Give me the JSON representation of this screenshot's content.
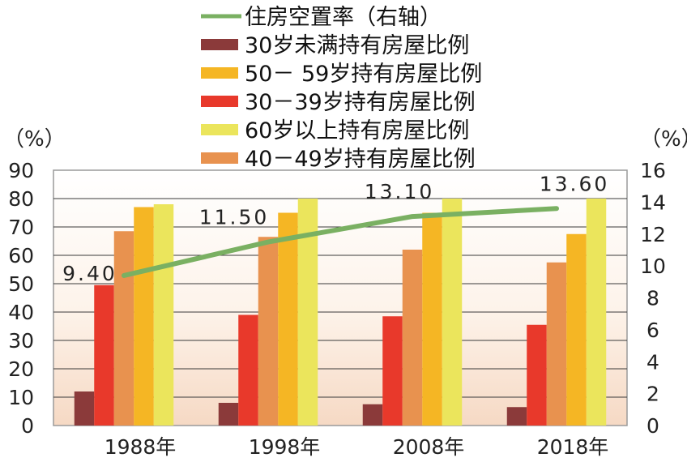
{
  "chart_data": {
    "type": "bar",
    "categories": [
      "1988年",
      "1998年",
      "2008年",
      "2018年"
    ],
    "left_axis": {
      "unit": "（%）",
      "ylim": [
        0,
        90
      ],
      "ticks": [
        0,
        10,
        20,
        30,
        40,
        50,
        60,
        70,
        80,
        90
      ]
    },
    "right_axis": {
      "unit": "（%）",
      "ylim": [
        0,
        16
      ],
      "ticks": [
        0,
        2,
        4,
        6,
        8,
        10,
        12,
        14,
        16
      ]
    },
    "series": [
      {
        "name": "30岁未满持有房屋比例",
        "color": "#8b3a3a",
        "values": [
          12,
          8,
          7.5,
          6.5
        ]
      },
      {
        "name": "30－39岁持有房屋比例",
        "color": "#e8392b",
        "values": [
          49.5,
          39,
          38.5,
          35.5
        ]
      },
      {
        "name": "40－49岁持有房屋比例",
        "color": "#e8924f",
        "values": [
          68.5,
          66.5,
          62,
          57.5
        ]
      },
      {
        "name": "50－ 59岁持有房屋比例",
        "color": "#f5b624",
        "values": [
          77,
          75,
          75,
          67.5
        ]
      },
      {
        "name": "60岁以上持有房屋比例",
        "color": "#ebe55c",
        "values": [
          78,
          80,
          80,
          80
        ]
      }
    ],
    "line_series": {
      "name": "住房空置率（右轴）",
      "axis": "right",
      "color": "#7ab062",
      "values": [
        9.4,
        11.5,
        13.1,
        13.6
      ],
      "labels": [
        "9.40",
        "11.50",
        "13.10",
        "13.60"
      ]
    },
    "legend_order": [
      "住房空置率（右轴）",
      "30岁未满持有房屋比例",
      "50－ 59岁持有房屋比例",
      "30－39岁持有房屋比例",
      "60岁以上持有房屋比例",
      "40－49岁持有房屋比例"
    ],
    "legend_position": "top-center",
    "grid": true,
    "plot_background": "gradient-white-to-peach"
  }
}
